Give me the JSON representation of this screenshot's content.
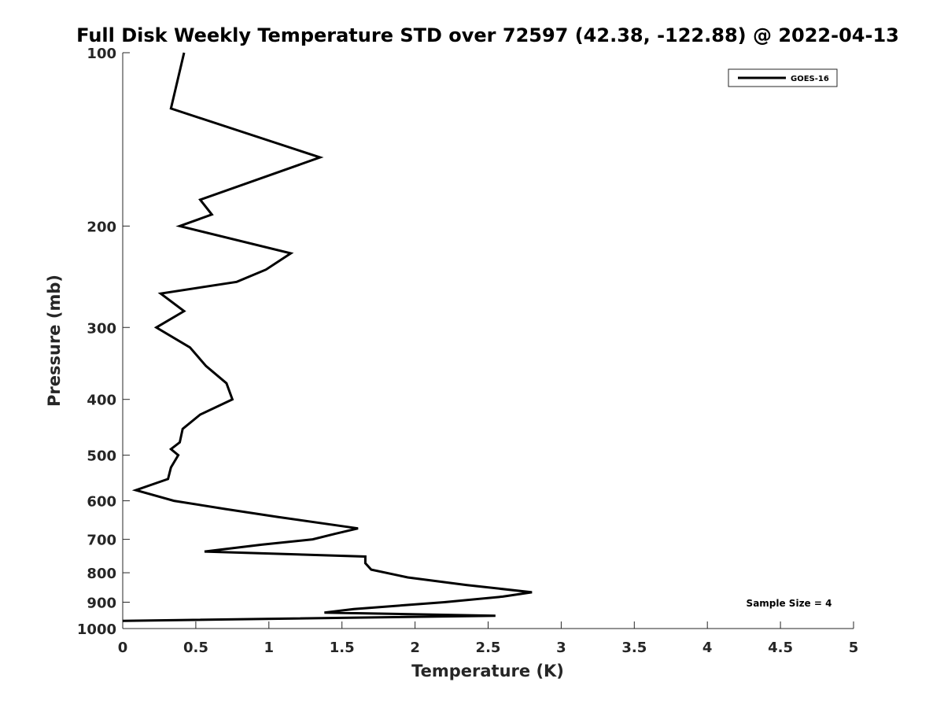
{
  "chart_data": {
    "type": "line",
    "title": "Full Disk Weekly Temperature STD over 72597 (42.38, -122.88) @ 2022-04-13",
    "xlabel": "Temperature (K)",
    "ylabel": "Pressure (mb)",
    "xlim": [
      0,
      5
    ],
    "ylim": [
      100,
      1000
    ],
    "y_scale": "log",
    "y_reversed": true,
    "x_ticks": [
      "0",
      "0.5",
      "1",
      "1.5",
      "2",
      "2.5",
      "3",
      "3.5",
      "4",
      "4.5",
      "5"
    ],
    "y_ticks": [
      "100",
      "200",
      "300",
      "400",
      "500",
      "600",
      "700",
      "800",
      "900",
      "1000"
    ],
    "grid": false,
    "legend_position": "top-right",
    "annotation": "Sample Size = 4",
    "series": [
      {
        "name": "GOES-16",
        "color": "#000000",
        "points": [
          [
            0.42,
            100
          ],
          [
            0.33,
            125
          ],
          [
            1.35,
            152
          ],
          [
            0.53,
            180
          ],
          [
            0.61,
            191
          ],
          [
            0.39,
            200
          ],
          [
            1.15,
            223
          ],
          [
            0.98,
            238
          ],
          [
            0.78,
            250
          ],
          [
            0.26,
            262
          ],
          [
            0.42,
            281
          ],
          [
            0.23,
            300
          ],
          [
            0.46,
            325
          ],
          [
            0.57,
            350
          ],
          [
            0.71,
            375
          ],
          [
            0.75,
            400
          ],
          [
            0.53,
            425
          ],
          [
            0.41,
            450
          ],
          [
            0.39,
            475
          ],
          [
            0.33,
            488
          ],
          [
            0.38,
            500
          ],
          [
            0.33,
            525
          ],
          [
            0.31,
            550
          ],
          [
            0.09,
            575
          ],
          [
            0.35,
            600
          ],
          [
            0.7,
            620
          ],
          [
            1.06,
            640
          ],
          [
            1.61,
            670
          ],
          [
            1.45,
            685
          ],
          [
            1.3,
            700
          ],
          [
            0.95,
            715
          ],
          [
            0.56,
            735
          ],
          [
            1.66,
            750
          ],
          [
            1.66,
            770
          ],
          [
            1.7,
            790
          ],
          [
            1.95,
            815
          ],
          [
            2.35,
            840
          ],
          [
            2.8,
            865
          ],
          [
            2.6,
            880
          ],
          [
            2.2,
            900
          ],
          [
            1.58,
            925
          ],
          [
            1.38,
            938
          ],
          [
            2.55,
            950
          ],
          [
            0.0,
            970
          ]
        ]
      }
    ]
  }
}
